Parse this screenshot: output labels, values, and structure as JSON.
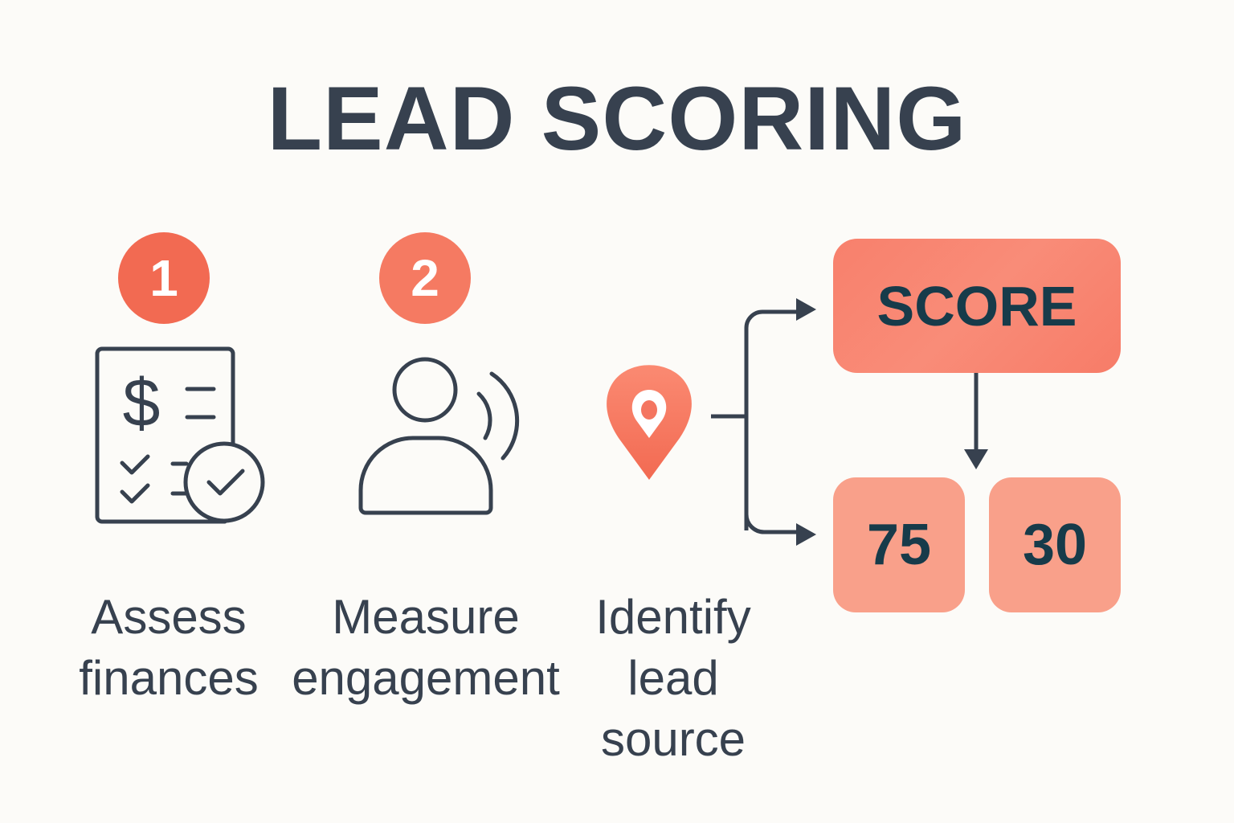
{
  "title": "LEAD SCORING",
  "steps": [
    {
      "number": "1",
      "icon": "finance-checklist-icon",
      "label_lines": [
        "Assess",
        "finances"
      ]
    },
    {
      "number": "2",
      "icon": "person-engagement-icon",
      "label_lines": [
        "Measure",
        "engagement"
      ]
    },
    {
      "icon": "location-pin-icon",
      "label_lines": [
        "Identify",
        "lead",
        "source"
      ]
    }
  ],
  "score": {
    "label": "SCORE",
    "values": [
      "75",
      "30"
    ]
  },
  "colors": {
    "text": "#37414f",
    "accent": "#f26a52",
    "score_box": "#f8806c",
    "value_box": "#f9a08a",
    "box_text": "#173b4a",
    "background": "#fcfbf8"
  }
}
